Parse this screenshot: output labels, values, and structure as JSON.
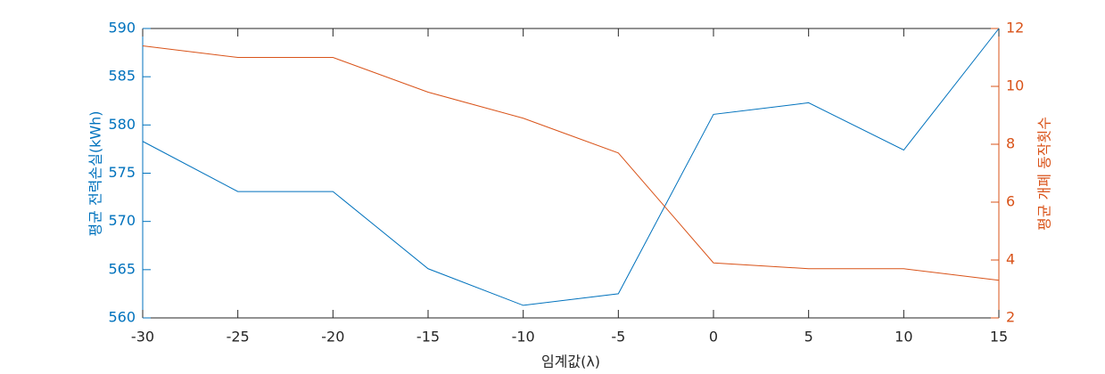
{
  "chart_data": {
    "type": "line",
    "xlabel": "임계값(λ)",
    "ylabel": "평균 전력손실(kWh)",
    "y2label": "평균 개폐 동작횟수",
    "x": [
      -30,
      -25,
      -20,
      -15,
      -10,
      -5,
      0,
      5,
      10,
      15
    ],
    "series": [
      {
        "color": "#0072BD",
        "values": [
          578.3,
          573.1,
          573.1,
          565.1,
          561.3,
          562.5,
          581.1,
          582.3,
          577.4,
          590
        ]
      },
      {
        "color": "#D95319",
        "axis": "y2",
        "values": [
          11.4,
          11.0,
          11.0,
          9.8,
          8.9,
          7.7,
          3.9,
          3.7,
          3.7,
          3.3
        ]
      }
    ],
    "xlim": [
      -30,
      15
    ],
    "xticks": [
      -30,
      -25,
      -20,
      -15,
      -10,
      -5,
      0,
      5,
      10,
      15
    ],
    "ylim": [
      560,
      590
    ],
    "yticks": [
      560,
      565,
      570,
      575,
      580,
      585,
      590
    ],
    "y2lim": [
      2,
      12
    ],
    "y2ticks": [
      2,
      4,
      6,
      8,
      10,
      12
    ]
  }
}
